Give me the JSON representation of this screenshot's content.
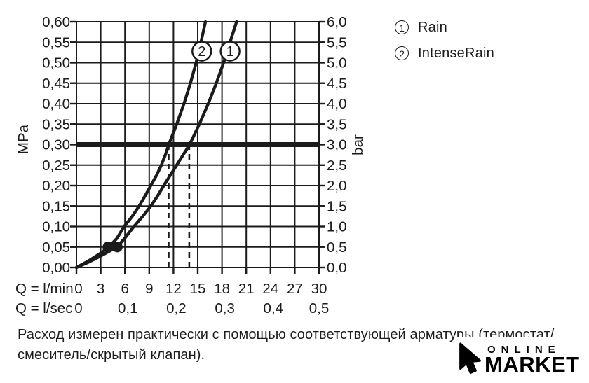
{
  "colors": {
    "ink": "#1b1b1b",
    "background": "#ffffff"
  },
  "chart_data": {
    "type": "line",
    "grid": true,
    "x_axis": {
      "row1_label": "Q = l/min",
      "row2_label": "Q = l/sec",
      "row1_ticks": [
        "0",
        "3",
        "6",
        "9",
        "12",
        "15",
        "18",
        "21",
        "24",
        "27",
        "30"
      ],
      "row1_values": [
        0,
        3,
        6,
        9,
        12,
        15,
        18,
        21,
        24,
        27,
        30
      ],
      "row2_ticks": [
        "0",
        "0,1",
        "0,2",
        "0,3",
        "0,4",
        "0,5"
      ],
      "row2_values": [
        0,
        6,
        12,
        18,
        24,
        30
      ],
      "range_lmin": [
        0,
        30
      ]
    },
    "y_axis_left": {
      "label": "MPa",
      "ticks": [
        "0,60",
        "0,55",
        "0,50",
        "0,45",
        "0,40",
        "0,35",
        "0,30",
        "0,25",
        "0,20",
        "0,15",
        "0,10",
        "0,05",
        "0,00"
      ],
      "values": [
        0.6,
        0.55,
        0.5,
        0.45,
        0.4,
        0.35,
        0.3,
        0.25,
        0.2,
        0.15,
        0.1,
        0.05,
        0.0
      ],
      "range": [
        0,
        0.6
      ]
    },
    "y_axis_right": {
      "label": "bar",
      "ticks": [
        "6,0",
        "5,5",
        "5,0",
        "4,5",
        "4,0",
        "3,5",
        "3,0",
        "2,5",
        "2,0",
        "1,5",
        "1,0",
        "0,5",
        "0,0"
      ],
      "values": [
        6.0,
        5.5,
        5.0,
        4.5,
        4.0,
        3.5,
        3.0,
        2.5,
        2.0,
        1.5,
        1.0,
        0.5,
        0.0
      ],
      "range": [
        0,
        6
      ]
    },
    "reference_line": {
      "mpa": 0.3,
      "bar": 3.0
    },
    "dashed_guides_lmin": [
      11.4,
      13.95
    ],
    "dots": [
      {
        "lmin": 3.9,
        "mpa": 0.05
      },
      {
        "lmin": 5.05,
        "mpa": 0.05
      }
    ],
    "series": [
      {
        "id": "1",
        "name": "Rain",
        "label_pos": {
          "lmin": 19.0,
          "mpa": 0.528
        },
        "points": [
          [
            0,
            0
          ],
          [
            1.5,
            0.013
          ],
          [
            3,
            0.028
          ],
          [
            5,
            0.05
          ],
          [
            6,
            0.072
          ],
          [
            7.1,
            0.1
          ],
          [
            8.2,
            0.125
          ],
          [
            9.2,
            0.15
          ],
          [
            10.05,
            0.175
          ],
          [
            10.8,
            0.2
          ],
          [
            11.6,
            0.225
          ],
          [
            12.4,
            0.25
          ],
          [
            13.2,
            0.275
          ],
          [
            14,
            0.3
          ],
          [
            15.2,
            0.35
          ],
          [
            16.3,
            0.4
          ],
          [
            17.3,
            0.45
          ],
          [
            18.2,
            0.5
          ],
          [
            19.0,
            0.55
          ],
          [
            19.8,
            0.6
          ]
        ]
      },
      {
        "id": "2",
        "name": "IntenseRain",
        "label_pos": {
          "lmin": 15.5,
          "mpa": 0.528
        },
        "points": [
          [
            0,
            0
          ],
          [
            1.5,
            0.016
          ],
          [
            3,
            0.035
          ],
          [
            4,
            0.05
          ],
          [
            5,
            0.071
          ],
          [
            5.9,
            0.1
          ],
          [
            6.9,
            0.125
          ],
          [
            7.75,
            0.15
          ],
          [
            8.5,
            0.175
          ],
          [
            9.2,
            0.2
          ],
          [
            9.9,
            0.225
          ],
          [
            10.5,
            0.25
          ],
          [
            11.0,
            0.275
          ],
          [
            11.42,
            0.3
          ],
          [
            12.4,
            0.35
          ],
          [
            13.3,
            0.4
          ],
          [
            14.1,
            0.45
          ],
          [
            14.8,
            0.5
          ],
          [
            15.4,
            0.55
          ],
          [
            15.95,
            0.6
          ]
        ]
      }
    ]
  },
  "legend": {
    "items": [
      {
        "num": "1",
        "label": "Rain"
      },
      {
        "num": "2",
        "label": "IntenseRain"
      }
    ]
  },
  "footnote": {
    "line1": "Расход измерен практически с помощью соответствующей арматуры (термостат/",
    "line2": "смеситель/скрытый клапан)."
  },
  "watermark": {
    "line1": "ONLINE",
    "line2": "MARKET"
  }
}
